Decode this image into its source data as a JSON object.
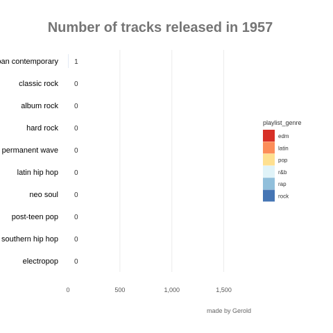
{
  "chart_data": {
    "type": "bar",
    "orientation": "horizontal",
    "title": "Number of tracks released in 1957",
    "caption": "made by Gerold",
    "categories": [
      "urban contemporary",
      "classic rock",
      "album rock",
      "hard rock",
      "permanent wave",
      "latin hip hop",
      "neo soul",
      "post-teen pop",
      "southern hip hop",
      "electropop"
    ],
    "values": [
      1,
      0,
      0,
      0,
      0,
      0,
      0,
      0,
      0,
      0
    ],
    "value_labels": [
      "1",
      "0",
      "0",
      "0",
      "0",
      "0",
      "0",
      "0",
      "0",
      "0"
    ],
    "xlim": [
      0,
      1750
    ],
    "xticks": [
      0,
      500,
      1000,
      1500
    ],
    "xtick_labels": [
      "0",
      "500",
      "1,000",
      "1,500"
    ],
    "grid": true,
    "legend": {
      "title": "playlist_genre",
      "position": "right",
      "entries": [
        {
          "label": "edm",
          "color": "#d73027"
        },
        {
          "label": "latin",
          "color": "#fc8d59"
        },
        {
          "label": "pop",
          "color": "#fee090"
        },
        {
          "label": "r&b",
          "color": "#e0f3f8"
        },
        {
          "label": "rap",
          "color": "#91bfdb"
        },
        {
          "label": "rock",
          "color": "#4575b4"
        }
      ]
    }
  }
}
